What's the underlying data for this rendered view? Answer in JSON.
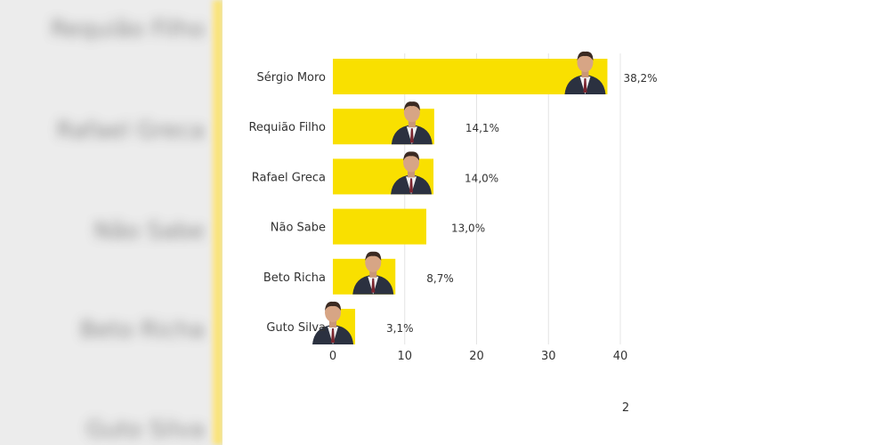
{
  "chart_data": {
    "type": "bar",
    "orientation": "horizontal",
    "categories": [
      "Sérgio Moro",
      "Requião Filho",
      "Rafael Greca",
      "Não Sabe",
      "Beto Richa",
      "Guto Silva"
    ],
    "values": [
      38.2,
      14.1,
      14.0,
      13.0,
      8.7,
      3.1
    ],
    "value_labels": [
      "38,2%",
      "14,1%",
      "14,0%",
      "13,0%",
      "8,7%",
      "3,1%"
    ],
    "xticks": [
      0,
      10,
      20,
      30,
      40
    ],
    "xlim": [
      0,
      40
    ],
    "grid": true,
    "bar_color": "#f9e000",
    "has_photo": [
      true,
      true,
      true,
      false,
      true,
      true
    ]
  },
  "page_number": "2",
  "background_labels": [
    "Requião Filho",
    "Rafael Greca",
    "Não Sabe",
    "Beto Richa",
    "Guto Silva"
  ]
}
